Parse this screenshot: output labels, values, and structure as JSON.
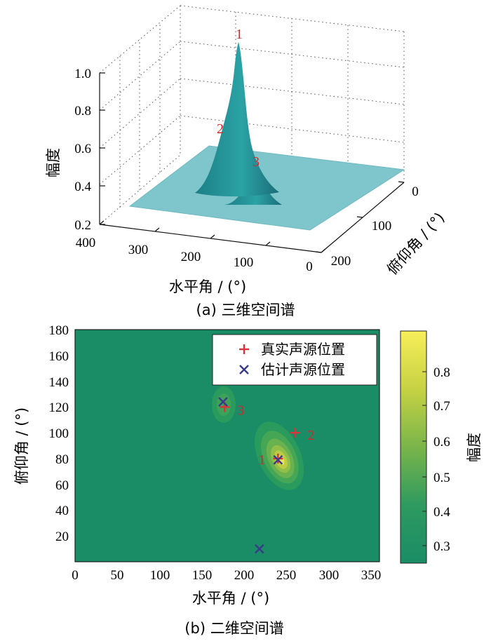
{
  "chart_data": [
    {
      "type": "surface",
      "caption": "(a) 三维空间谱",
      "xlabel": "水平角 / (°)",
      "ylabel": "俯仰角 / (°)",
      "zlabel": "幅度",
      "xlim": [
        0,
        400
      ],
      "ylim": [
        0,
        200
      ],
      "zlim": [
        0.2,
        1.0
      ],
      "x_ticks": [
        "400",
        "300",
        "200",
        "100",
        "0"
      ],
      "y_ticks": [
        "0",
        "100",
        "200"
      ],
      "z_ticks": [
        "0.2",
        "0.4",
        "0.6",
        "0.8",
        "1.0"
      ],
      "baseline": 0.255,
      "peaks": [
        {
          "label": "1",
          "x": 240,
          "y": 80,
          "z": 1.0
        },
        {
          "label": "2",
          "x": 260,
          "y": 100,
          "z": 0.58
        },
        {
          "label": "3",
          "x": 177,
          "y": 122,
          "z": 0.44
        }
      ]
    },
    {
      "type": "heatmap",
      "caption": "(b) 二维空间谱",
      "xlabel": "水平角 / (°)",
      "ylabel": "俯仰角 / (°)",
      "xlim": [
        0,
        360
      ],
      "ylim": [
        0,
        180
      ],
      "x_ticks": [
        "0",
        "50",
        "100",
        "150",
        "200",
        "250",
        "300",
        "350"
      ],
      "y_ticks": [
        "20",
        "40",
        "60",
        "80",
        "100",
        "120",
        "140",
        "160",
        "180"
      ],
      "colorbar": {
        "label": "幅度",
        "ticks": [
          "0.3",
          "0.4",
          "0.5",
          "0.6",
          "0.7",
          "0.8"
        ],
        "range": [
          0.26,
          0.91
        ]
      },
      "legend": {
        "position": "top-right",
        "entries": [
          "真实声源位置",
          "估计声源位置"
        ]
      },
      "true_sources": [
        {
          "label": "1",
          "x": 240,
          "y": 80
        },
        {
          "label": "2",
          "x": 260,
          "y": 100
        },
        {
          "label": "3",
          "x": 177,
          "y": 120
        }
      ],
      "estimated_sources": [
        {
          "x": 240,
          "y": 79
        },
        {
          "x": 175,
          "y": 124
        },
        {
          "x": 218,
          "y": 10
        }
      ],
      "colors": {
        "background": "#1b8d66",
        "true_marker": "#e0303a",
        "est_marker": "#3a3a8a"
      }
    }
  ]
}
